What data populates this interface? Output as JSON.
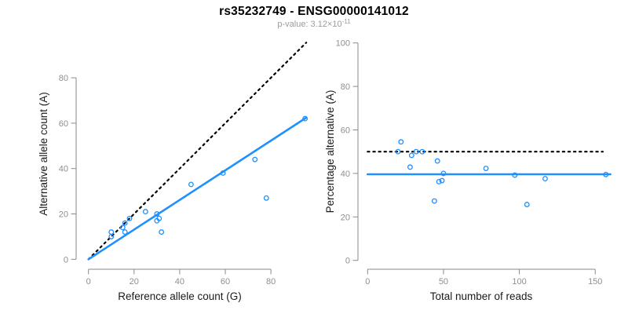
{
  "header": {
    "title": "rs35232749 - ENSG00000141012",
    "pvalue_prefix": "p-value: 3.12",
    "pvalue_times": "×",
    "pvalue_base": "10",
    "pvalue_exponent": "-11"
  },
  "colors": {
    "accent": "#1e90ff",
    "axis": "#8a8a8a",
    "tick_label": "#8f8f8f",
    "label": "#1a1a1a",
    "subtitle": "#9b9b9b",
    "ref_line": "#000000"
  },
  "chart_data": [
    {
      "id": "allele-count-scatter",
      "type": "scatter",
      "title": "rs35232749 - ENSG00000141012",
      "xlabel": "Reference allele count (G)",
      "ylabel": "Alternative allele count (A)",
      "xticks": [
        0,
        20,
        40,
        60,
        80
      ],
      "yticks": [
        0,
        20,
        40,
        60,
        80
      ],
      "xlim": [
        0,
        96
      ],
      "ylim": [
        0,
        96
      ],
      "grid": false,
      "points": [
        [
          10,
          10
        ],
        [
          10,
          12
        ],
        [
          15,
          14
        ],
        [
          16,
          12
        ],
        [
          16,
          16
        ],
        [
          18,
          18
        ],
        [
          25,
          21
        ],
        [
          30,
          17
        ],
        [
          30,
          20
        ],
        [
          31,
          18
        ],
        [
          32,
          12
        ],
        [
          45,
          33
        ],
        [
          59,
          38
        ],
        [
          73,
          44
        ],
        [
          78,
          27
        ],
        [
          95,
          62
        ]
      ],
      "lines": [
        {
          "name": "identity-line",
          "style": "dotted",
          "color": "#000000",
          "x1": 0,
          "y1": 0,
          "x2": 95.5,
          "y2": 95.5
        },
        {
          "name": "fit-line",
          "style": "solid",
          "color": "#1e90ff",
          "x1": 0,
          "y1": 0,
          "x2": 95.3,
          "y2": 62.3
        }
      ]
    },
    {
      "id": "percentage-vs-reads-scatter",
      "type": "scatter",
      "title": "rs35232749 - ENSG00000141012",
      "xlabel": "Total number of reads",
      "ylabel": "Percentage alternative (A)",
      "xticks": [
        0,
        50,
        100,
        150
      ],
      "yticks": [
        0,
        20,
        40,
        60,
        80,
        100
      ],
      "xlim": [
        0,
        160
      ],
      "ylim": [
        0,
        100
      ],
      "grid": false,
      "points": [
        [
          20,
          50
        ],
        [
          22,
          54.5
        ],
        [
          29,
          48.3
        ],
        [
          28,
          42.9
        ],
        [
          32,
          50
        ],
        [
          36,
          50
        ],
        [
          46,
          45.7
        ],
        [
          47,
          36.2
        ],
        [
          50,
          40
        ],
        [
          49,
          36.7
        ],
        [
          44,
          27.3
        ],
        [
          78,
          42.3
        ],
        [
          97,
          39.2
        ],
        [
          117,
          37.6
        ],
        [
          105,
          25.7
        ],
        [
          157,
          39.5
        ]
      ],
      "lines": [
        {
          "name": "fifty-percent-line",
          "style": "dotted",
          "color": "#000000",
          "x1": 0,
          "y1": 50,
          "x2": 155,
          "y2": 50
        },
        {
          "name": "mean-ratio-line",
          "style": "solid",
          "color": "#1e90ff",
          "x1": 0,
          "y1": 39.6,
          "x2": 160,
          "y2": 39.6
        }
      ]
    }
  ]
}
